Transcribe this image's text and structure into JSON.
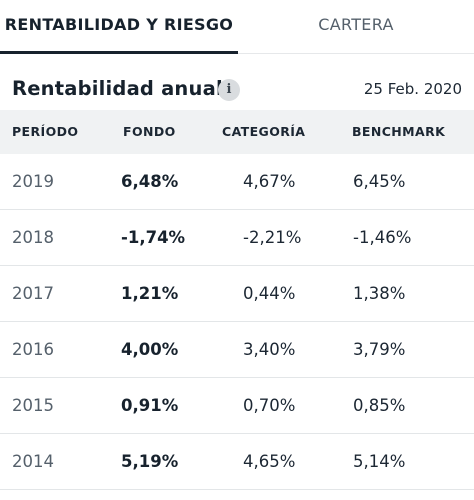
{
  "tabs": [
    {
      "label": "RENTABILIDAD Y RIESGO",
      "active": true
    },
    {
      "label": "CARTERA",
      "active": false
    }
  ],
  "section": {
    "title": "Rentabilidad anual",
    "info_icon": "info-icon",
    "date": "25 Feb. 2020"
  },
  "table": {
    "headers": [
      "PERÍODO",
      "FONDO",
      "CATEGORÍA",
      "BENCHMARK"
    ],
    "rows": [
      {
        "periodo": "2019",
        "fondo": "6,48%",
        "categoria": "4,67%",
        "benchmark": "6,45%"
      },
      {
        "periodo": "2018",
        "fondo": "-1,74%",
        "categoria": "-2,21%",
        "benchmark": "-1,46%"
      },
      {
        "periodo": "2017",
        "fondo": "1,21%",
        "categoria": "0,44%",
        "benchmark": "1,38%"
      },
      {
        "periodo": "2016",
        "fondo": "4,00%",
        "categoria": "3,40%",
        "benchmark": "3,79%"
      },
      {
        "periodo": "2015",
        "fondo": "0,91%",
        "categoria": "0,70%",
        "benchmark": "0,85%"
      },
      {
        "periodo": "2014",
        "fondo": "5,19%",
        "categoria": "4,65%",
        "benchmark": "5,14%"
      }
    ]
  },
  "colors": {
    "text_primary": "#17222d",
    "text_secondary": "#55606b",
    "header_bg": "#f0f2f3",
    "divider": "#e3e6e8"
  }
}
